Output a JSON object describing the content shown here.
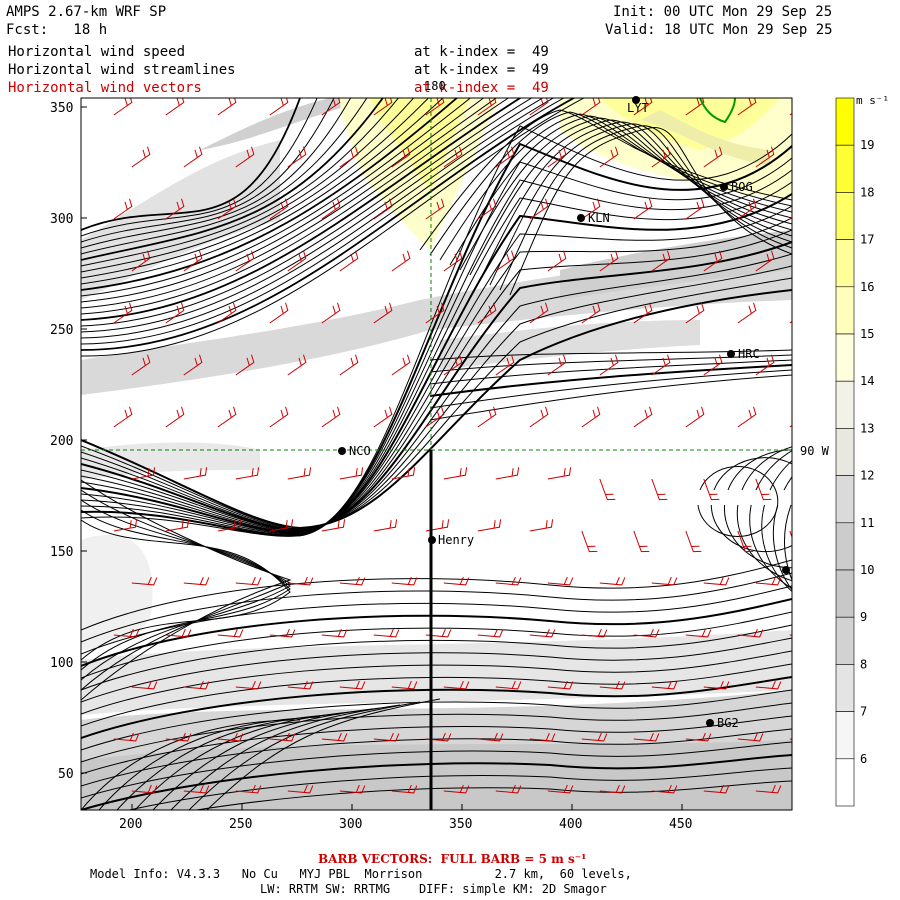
{
  "header": {
    "model": "AMPS 2.67-km WRF SP",
    "fcst": "Fcst:   18 h",
    "init": "Init: 00 UTC Mon 29 Sep 25",
    "valid": "Valid: 18 UTC Mon 29 Sep 25"
  },
  "fields": [
    {
      "name": "Horizontal wind speed",
      "level": "at k-index =  49",
      "color": "#000000"
    },
    {
      "name": "Horizontal wind streamlines",
      "level": "at k-index =  49",
      "color": "#000000"
    },
    {
      "name": "Horizontal wind vectors",
      "level": "at k-index =  49",
      "color": "#cc0000"
    }
  ],
  "stations": [
    {
      "label": "LYT"
    },
    {
      "label": "BOG"
    },
    {
      "label": "KLN"
    },
    {
      "label": "HRC"
    },
    {
      "label": "NCO"
    },
    {
      "label": "Henry"
    },
    {
      "label": "BG2"
    }
  ],
  "reference_lines": {
    "lon_label": "180",
    "lat_label": "90 W"
  },
  "colorbar": {
    "units": "m s⁻¹",
    "labels": [
      "19",
      "18",
      "17",
      "16",
      "15",
      "14",
      "13",
      "12",
      "11",
      "10",
      "9",
      "8",
      "7",
      "6"
    ],
    "colors": [
      "#ffff00",
      "#ffff33",
      "#ffff66",
      "#ffff99",
      "#ffffbb",
      "#ffffdd",
      "#f2f2e6",
      "#e8e8e0",
      "#dadada",
      "#cccccc",
      "#c8c8c8",
      "#d2d2d2",
      "#e4e4e4",
      "#f6f6f6",
      "#ffffff"
    ]
  },
  "axes": {
    "x_ticks": [
      "200",
      "250",
      "300",
      "350",
      "400",
      "450"
    ],
    "y_ticks": [
      "350",
      "300",
      "250",
      "200",
      "150",
      "100",
      "50"
    ]
  },
  "footer": {
    "barb_note": "BARB VECTORS:  FULL BARB = 5 m s⁻¹",
    "model_info": "Model Info: V4.3.3   No Cu   MYJ PBL  Morrison          2.7 km,  60 levels,",
    "physics": "LW: RRTM SW: RRTMG    DIFF: simple KM: 2D Smagor"
  }
}
